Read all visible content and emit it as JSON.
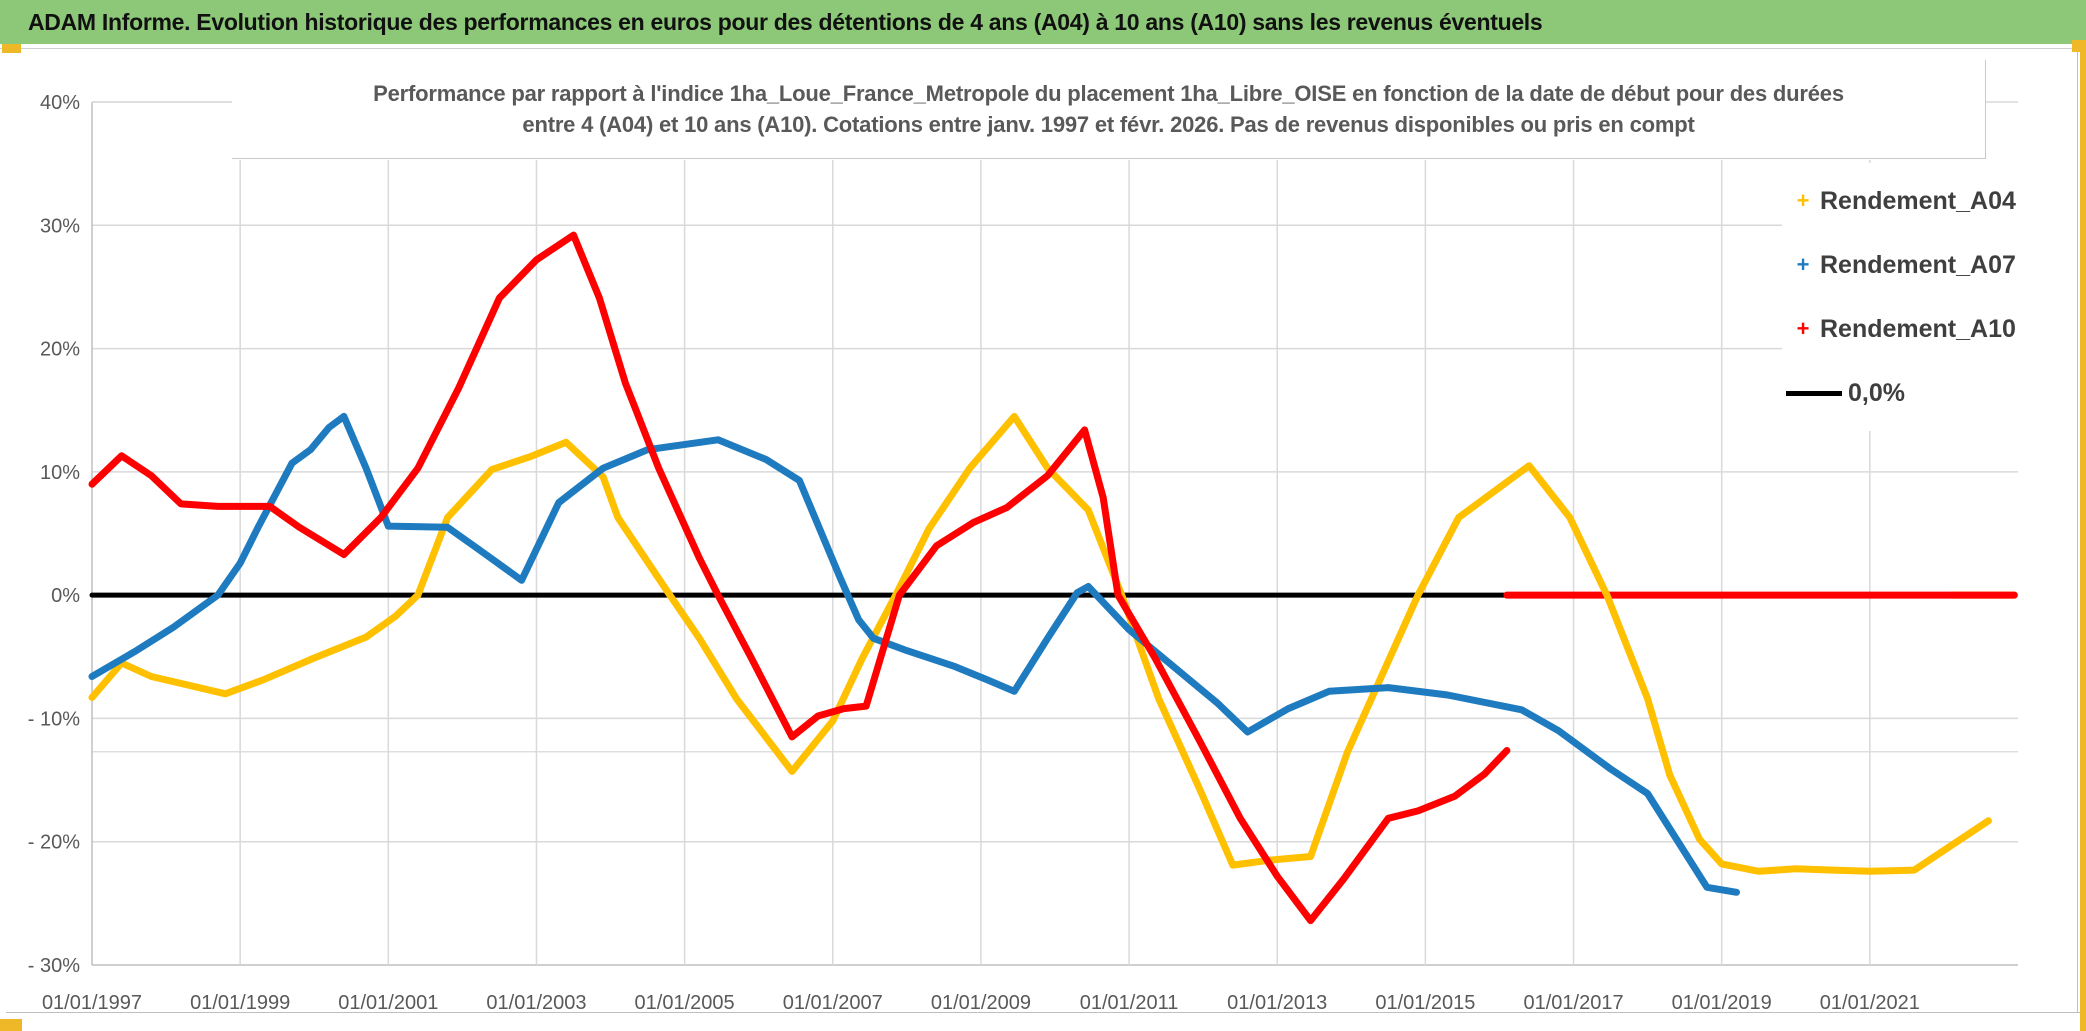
{
  "header": {
    "title": "ADAM Informe. Evolution historique des performances en euros pour des détentions de 4 ans (A04) à 10 ans (A10) sans les revenus éventuels"
  },
  "colors": {
    "header_bg": "#8cc878",
    "accent": "#efb829",
    "a04": "#ffc000",
    "a07": "#1f7bbf",
    "a10": "#ff0000",
    "zero": "#000000",
    "grid": "#d9d9d9",
    "axis_line": "#bfbfbf",
    "axis_text": "#595959"
  },
  "chart": {
    "subtitle_line1": "Performance par rapport à l'indice 1ha_Loue_France_Metropole  du placement 1ha_Libre_OISE en fonction de la date de début pour des durées",
    "subtitle_line2": "entre 4 (A04) et 10 ans (A10). Cotations entre janv. 1997 et févr. 2026. Pas de revenus disponibles ou pris en compt",
    "legend": [
      {
        "label": "Rendement_A04",
        "marker": "+",
        "color": "#ffc000"
      },
      {
        "label": "Rendement_A07",
        "marker": "+",
        "color": "#1f7bbf"
      },
      {
        "label": "Rendement_A10",
        "marker": "+",
        "color": "#ff0000"
      },
      {
        "label": "0,0%",
        "marker": "line",
        "color": "#000000"
      }
    ]
  },
  "chart_data": {
    "type": "line",
    "title": "Performance par rapport à l'indice 1ha_Loue_France_Metropole du placement 1ha_Libre_OISE en fonction de la date de début pour des durées entre 4 (A04) et 10 ans (A10). Cotations entre janv. 1997 et févr. 2026. Pas de revenus disponibles ou pris en compt",
    "xlabel": "",
    "ylabel": "",
    "xlim": [
      1997.0,
      2023.0
    ],
    "ylim": [
      -30,
      40
    ],
    "grid": true,
    "legend_position": "right",
    "x_axis": {
      "tick_years": [
        1997,
        1999,
        2001,
        2003,
        2005,
        2007,
        2009,
        2011,
        2013,
        2015,
        2017,
        2019,
        2021
      ],
      "tick_labels": [
        "01/01/1997",
        "01/01/1999",
        "01/01/2001",
        "01/01/2003",
        "01/01/2005",
        "01/01/2007",
        "01/01/2009",
        "01/01/2011",
        "01/01/2013",
        "01/01/2015",
        "01/01/2017",
        "01/01/2019",
        "01/01/2021"
      ]
    },
    "y_axis": {
      "tick_values": [
        40,
        30,
        20,
        10,
        0,
        -10,
        -20,
        -30
      ],
      "tick_labels": [
        "40%",
        "30%",
        "20%",
        "10%",
        "0%",
        "- 10%",
        "- 20%",
        "- 30%"
      ],
      "extra_gridline_value": -12.7
    },
    "series": [
      {
        "name": "Rendement_A04",
        "color_key": "a04",
        "points": [
          [
            1997.0,
            -8.3
          ],
          [
            1997.4,
            -5.5
          ],
          [
            1997.8,
            -6.6
          ],
          [
            1998.3,
            -7.3
          ],
          [
            1998.8,
            -8.0
          ],
          [
            1999.3,
            -6.9
          ],
          [
            2000.0,
            -5.1
          ],
          [
            2000.7,
            -3.4
          ],
          [
            2001.1,
            -1.7
          ],
          [
            2001.4,
            0.0
          ],
          [
            2001.8,
            6.3
          ],
          [
            2002.4,
            10.2
          ],
          [
            2002.9,
            11.2
          ],
          [
            2003.4,
            12.4
          ],
          [
            2003.9,
            9.6
          ],
          [
            2004.1,
            6.3
          ],
          [
            2004.8,
            0.0
          ],
          [
            2005.2,
            -3.5
          ],
          [
            2005.7,
            -8.4
          ],
          [
            2006.45,
            -14.3
          ],
          [
            2007.0,
            -10.2
          ],
          [
            2007.4,
            -5.1
          ],
          [
            2007.85,
            0.0
          ],
          [
            2008.3,
            5.4
          ],
          [
            2008.85,
            10.3
          ],
          [
            2009.45,
            14.5
          ],
          [
            2009.9,
            10.3
          ],
          [
            2010.45,
            6.9
          ],
          [
            2010.9,
            0.0
          ],
          [
            2011.4,
            -8.4
          ],
          [
            2011.95,
            -15.7
          ],
          [
            2012.4,
            -21.9
          ],
          [
            2012.9,
            -21.5
          ],
          [
            2013.45,
            -21.2
          ],
          [
            2013.95,
            -12.7
          ],
          [
            2014.9,
            0.0
          ],
          [
            2015.45,
            6.3
          ],
          [
            2016.4,
            10.5
          ],
          [
            2016.95,
            6.3
          ],
          [
            2017.45,
            0.0
          ],
          [
            2018.0,
            -8.4
          ],
          [
            2018.3,
            -14.6
          ],
          [
            2018.7,
            -19.8
          ],
          [
            2019.0,
            -21.8
          ],
          [
            2019.5,
            -22.4
          ],
          [
            2020.0,
            -22.2
          ],
          [
            2020.5,
            -22.3
          ],
          [
            2021.0,
            -22.4
          ],
          [
            2021.6,
            -22.3
          ],
          [
            2022.6,
            -18.3
          ]
        ]
      },
      {
        "name": "Rendement_A07",
        "color_key": "a07",
        "points": [
          [
            1997.0,
            -6.6
          ],
          [
            1997.6,
            -4.5
          ],
          [
            1998.1,
            -2.6
          ],
          [
            1998.7,
            0.0
          ],
          [
            1999.0,
            2.6
          ],
          [
            1999.25,
            5.6
          ],
          [
            1999.7,
            10.7
          ],
          [
            1999.95,
            11.8
          ],
          [
            2000.2,
            13.6
          ],
          [
            2000.4,
            14.5
          ],
          [
            2000.7,
            10.3
          ],
          [
            2001.0,
            5.6
          ],
          [
            2001.8,
            5.5
          ],
          [
            2002.2,
            3.8
          ],
          [
            2002.8,
            1.2
          ],
          [
            2003.3,
            7.5
          ],
          [
            2003.9,
            10.3
          ],
          [
            2004.5,
            11.8
          ],
          [
            2005.45,
            12.6
          ],
          [
            2006.1,
            11.0
          ],
          [
            2006.55,
            9.3
          ],
          [
            2007.1,
            1.4
          ],
          [
            2007.35,
            -2.0
          ],
          [
            2007.55,
            -3.5
          ],
          [
            2008.0,
            -4.5
          ],
          [
            2008.65,
            -5.8
          ],
          [
            2009.1,
            -6.9
          ],
          [
            2009.45,
            -7.8
          ],
          [
            2009.9,
            -3.5
          ],
          [
            2010.3,
            0.2
          ],
          [
            2010.45,
            0.7
          ],
          [
            2011.0,
            -2.8
          ],
          [
            2011.6,
            -5.8
          ],
          [
            2012.2,
            -8.8
          ],
          [
            2012.6,
            -11.1
          ],
          [
            2013.15,
            -9.2
          ],
          [
            2013.7,
            -7.8
          ],
          [
            2014.5,
            -7.5
          ],
          [
            2015.3,
            -8.1
          ],
          [
            2016.3,
            -9.3
          ],
          [
            2016.8,
            -11.0
          ],
          [
            2017.5,
            -14.1
          ],
          [
            2018.0,
            -16.1
          ],
          [
            2018.8,
            -23.7
          ],
          [
            2019.2,
            -24.1
          ]
        ]
      },
      {
        "name": "Rendement_A10",
        "color_key": "a10",
        "points": [
          [
            1997.0,
            9.0
          ],
          [
            1997.4,
            11.3
          ],
          [
            1997.8,
            9.7
          ],
          [
            1998.2,
            7.4
          ],
          [
            1998.7,
            7.2
          ],
          [
            1999.4,
            7.2
          ],
          [
            1999.8,
            5.5
          ],
          [
            2000.4,
            3.3
          ],
          [
            2000.9,
            6.3
          ],
          [
            2001.4,
            10.3
          ],
          [
            2001.95,
            16.8
          ],
          [
            2002.5,
            24.1
          ],
          [
            2003.0,
            27.2
          ],
          [
            2003.5,
            29.2
          ],
          [
            2003.85,
            24.1
          ],
          [
            2004.2,
            17.2
          ],
          [
            2004.65,
            10.3
          ],
          [
            2005.2,
            3.0
          ],
          [
            2005.45,
            0.0
          ],
          [
            2005.9,
            -5.1
          ],
          [
            2006.45,
            -11.5
          ],
          [
            2006.8,
            -9.8
          ],
          [
            2007.15,
            -9.2
          ],
          [
            2007.45,
            -9.0
          ],
          [
            2007.9,
            0.0
          ],
          [
            2008.4,
            4.0
          ],
          [
            2008.9,
            5.9
          ],
          [
            2009.35,
            7.1
          ],
          [
            2009.9,
            9.7
          ],
          [
            2010.4,
            13.4
          ],
          [
            2010.65,
            7.9
          ],
          [
            2010.85,
            0.0
          ],
          [
            2011.35,
            -5.1
          ],
          [
            2011.95,
            -11.8
          ],
          [
            2012.5,
            -18.1
          ],
          [
            2013.0,
            -22.8
          ],
          [
            2013.45,
            -26.4
          ],
          [
            2013.9,
            -23.0
          ],
          [
            2014.5,
            -18.1
          ],
          [
            2014.9,
            -17.5
          ],
          [
            2015.4,
            -16.3
          ],
          [
            2015.8,
            -14.5
          ],
          [
            2016.1,
            -12.6
          ]
        ]
      },
      {
        "name": "0,0%",
        "color_key": "zero",
        "points": [
          [
            1997.0,
            0.0
          ],
          [
            2022.1,
            0.0
          ]
        ]
      }
    ],
    "tail_segments": [
      {
        "series": "Rendement_A04",
        "color_key": "a04",
        "points": [
          [
            2022.1,
            0.0
          ],
          [
            2022.95,
            0.0
          ]
        ]
      },
      {
        "series": "Rendement_A10",
        "color_key": "a10",
        "points": [
          [
            2016.1,
            0.0
          ],
          [
            2022.95,
            0.0
          ]
        ]
      }
    ]
  }
}
